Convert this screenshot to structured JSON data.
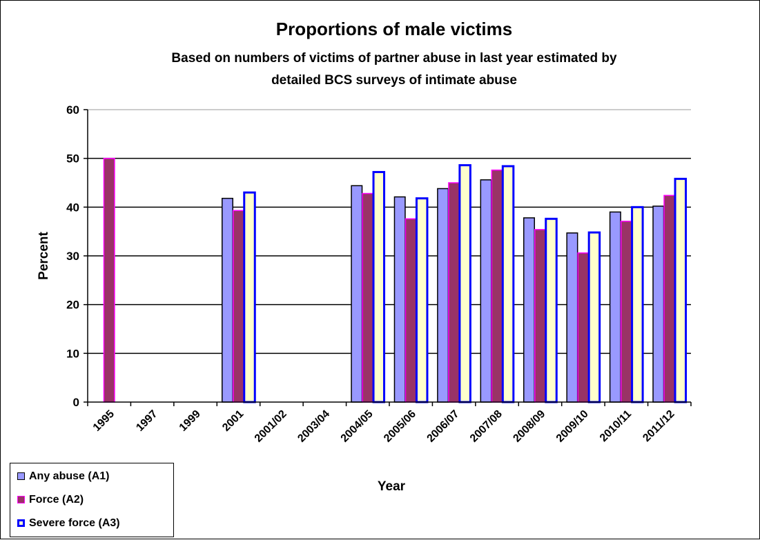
{
  "chart_data": {
    "type": "bar",
    "title": "Proportions of male victims",
    "subtitle": [
      "Based on numbers of victims of partner abuse in last year estimated by",
      "detailed BCS surveys of intimate abuse"
    ],
    "xlabel": "Year",
    "ylabel": "Percent",
    "ylim": [
      0,
      60
    ],
    "yticks": [
      0,
      10,
      20,
      30,
      40,
      50,
      60
    ],
    "grid": true,
    "legend_position": "bottom-left",
    "categories": [
      "1995",
      "1997",
      "1999",
      "2001",
      "2001/02",
      "2003/04",
      "2004/05",
      "2005/06",
      "2006/07",
      "2007/08",
      "2008/09",
      "2009/10",
      "2010/11",
      "2011/12"
    ],
    "series": [
      {
        "name": "Any abuse (A1)",
        "fill": "#9999ff",
        "stroke": "#000000",
        "values": [
          null,
          null,
          null,
          41.8,
          null,
          null,
          44.4,
          42.1,
          43.8,
          45.6,
          37.8,
          34.7,
          39.0,
          40.2
        ]
      },
      {
        "name": "Force (A2)",
        "fill": "#993366",
        "stroke": "#ff00ff",
        "values": [
          50.0,
          null,
          null,
          39.3,
          null,
          null,
          42.8,
          37.6,
          45.0,
          47.6,
          35.4,
          30.6,
          37.1,
          42.4
        ]
      },
      {
        "name": "Severe force (A3)",
        "fill": "#ffffcc",
        "stroke": "#0000ff",
        "values": [
          null,
          null,
          null,
          43.0,
          null,
          null,
          47.2,
          41.8,
          48.6,
          48.4,
          37.6,
          34.8,
          40.0,
          45.8
        ]
      }
    ]
  }
}
